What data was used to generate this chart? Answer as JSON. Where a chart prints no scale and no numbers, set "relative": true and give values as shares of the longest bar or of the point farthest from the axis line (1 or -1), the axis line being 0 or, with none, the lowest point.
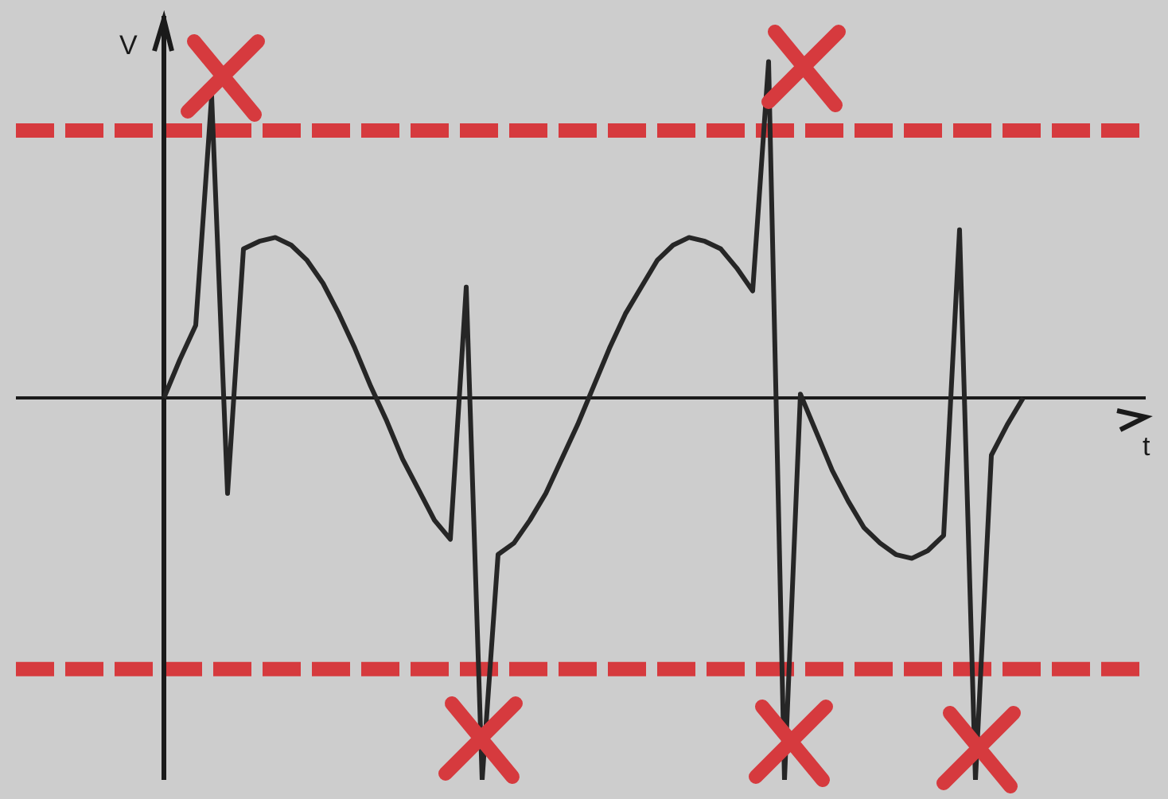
{
  "chart_data": {
    "type": "line",
    "relative": true,
    "xlabel": "t",
    "ylabel": "V",
    "color": "#262626",
    "categories": [
      null,
      null,
      null,
      null,
      null,
      null,
      null,
      null,
      null,
      null,
      null,
      null,
      null,
      null,
      null,
      null,
      null,
      null,
      null,
      null,
      null,
      null,
      null,
      null,
      null,
      null,
      null,
      null,
      null,
      null,
      null,
      null,
      null,
      null,
      null,
      null,
      null,
      null,
      null,
      null,
      null,
      null,
      null,
      null,
      null,
      null,
      null,
      null,
      null,
      null,
      null,
      null,
      null,
      null,
      null
    ],
    "values": [
      0,
      0.1,
      0.19,
      0.79,
      -0.25,
      0.39,
      0.41,
      0.42,
      0.4,
      0.36,
      0.3,
      0.22,
      0.13,
      0.03,
      -0.06,
      -0.16,
      -0.24,
      -0.32,
      -0.37,
      0.29,
      -1.0,
      -0.41,
      -0.38,
      -0.32,
      -0.25,
      -0.16,
      -0.07,
      0.03,
      0.13,
      0.22,
      0.29,
      0.36,
      0.4,
      0.42,
      0.41,
      0.39,
      0.34,
      0.28,
      0.88,
      -1.0,
      0.01,
      -0.09,
      -0.19,
      -0.27,
      -0.34,
      -0.38,
      -0.41,
      -0.42,
      -0.4,
      -0.36,
      0.44,
      -1.0,
      -0.15,
      -0.07,
      0
    ],
    "ref_lines": [
      {
        "axis": "y",
        "value": 0.7,
        "color": "#d63a3e",
        "line_style": "dashed"
      },
      {
        "axis": "y",
        "value": -0.71,
        "color": "#d63a3e",
        "line_style": "dashed"
      }
    ]
  }
}
